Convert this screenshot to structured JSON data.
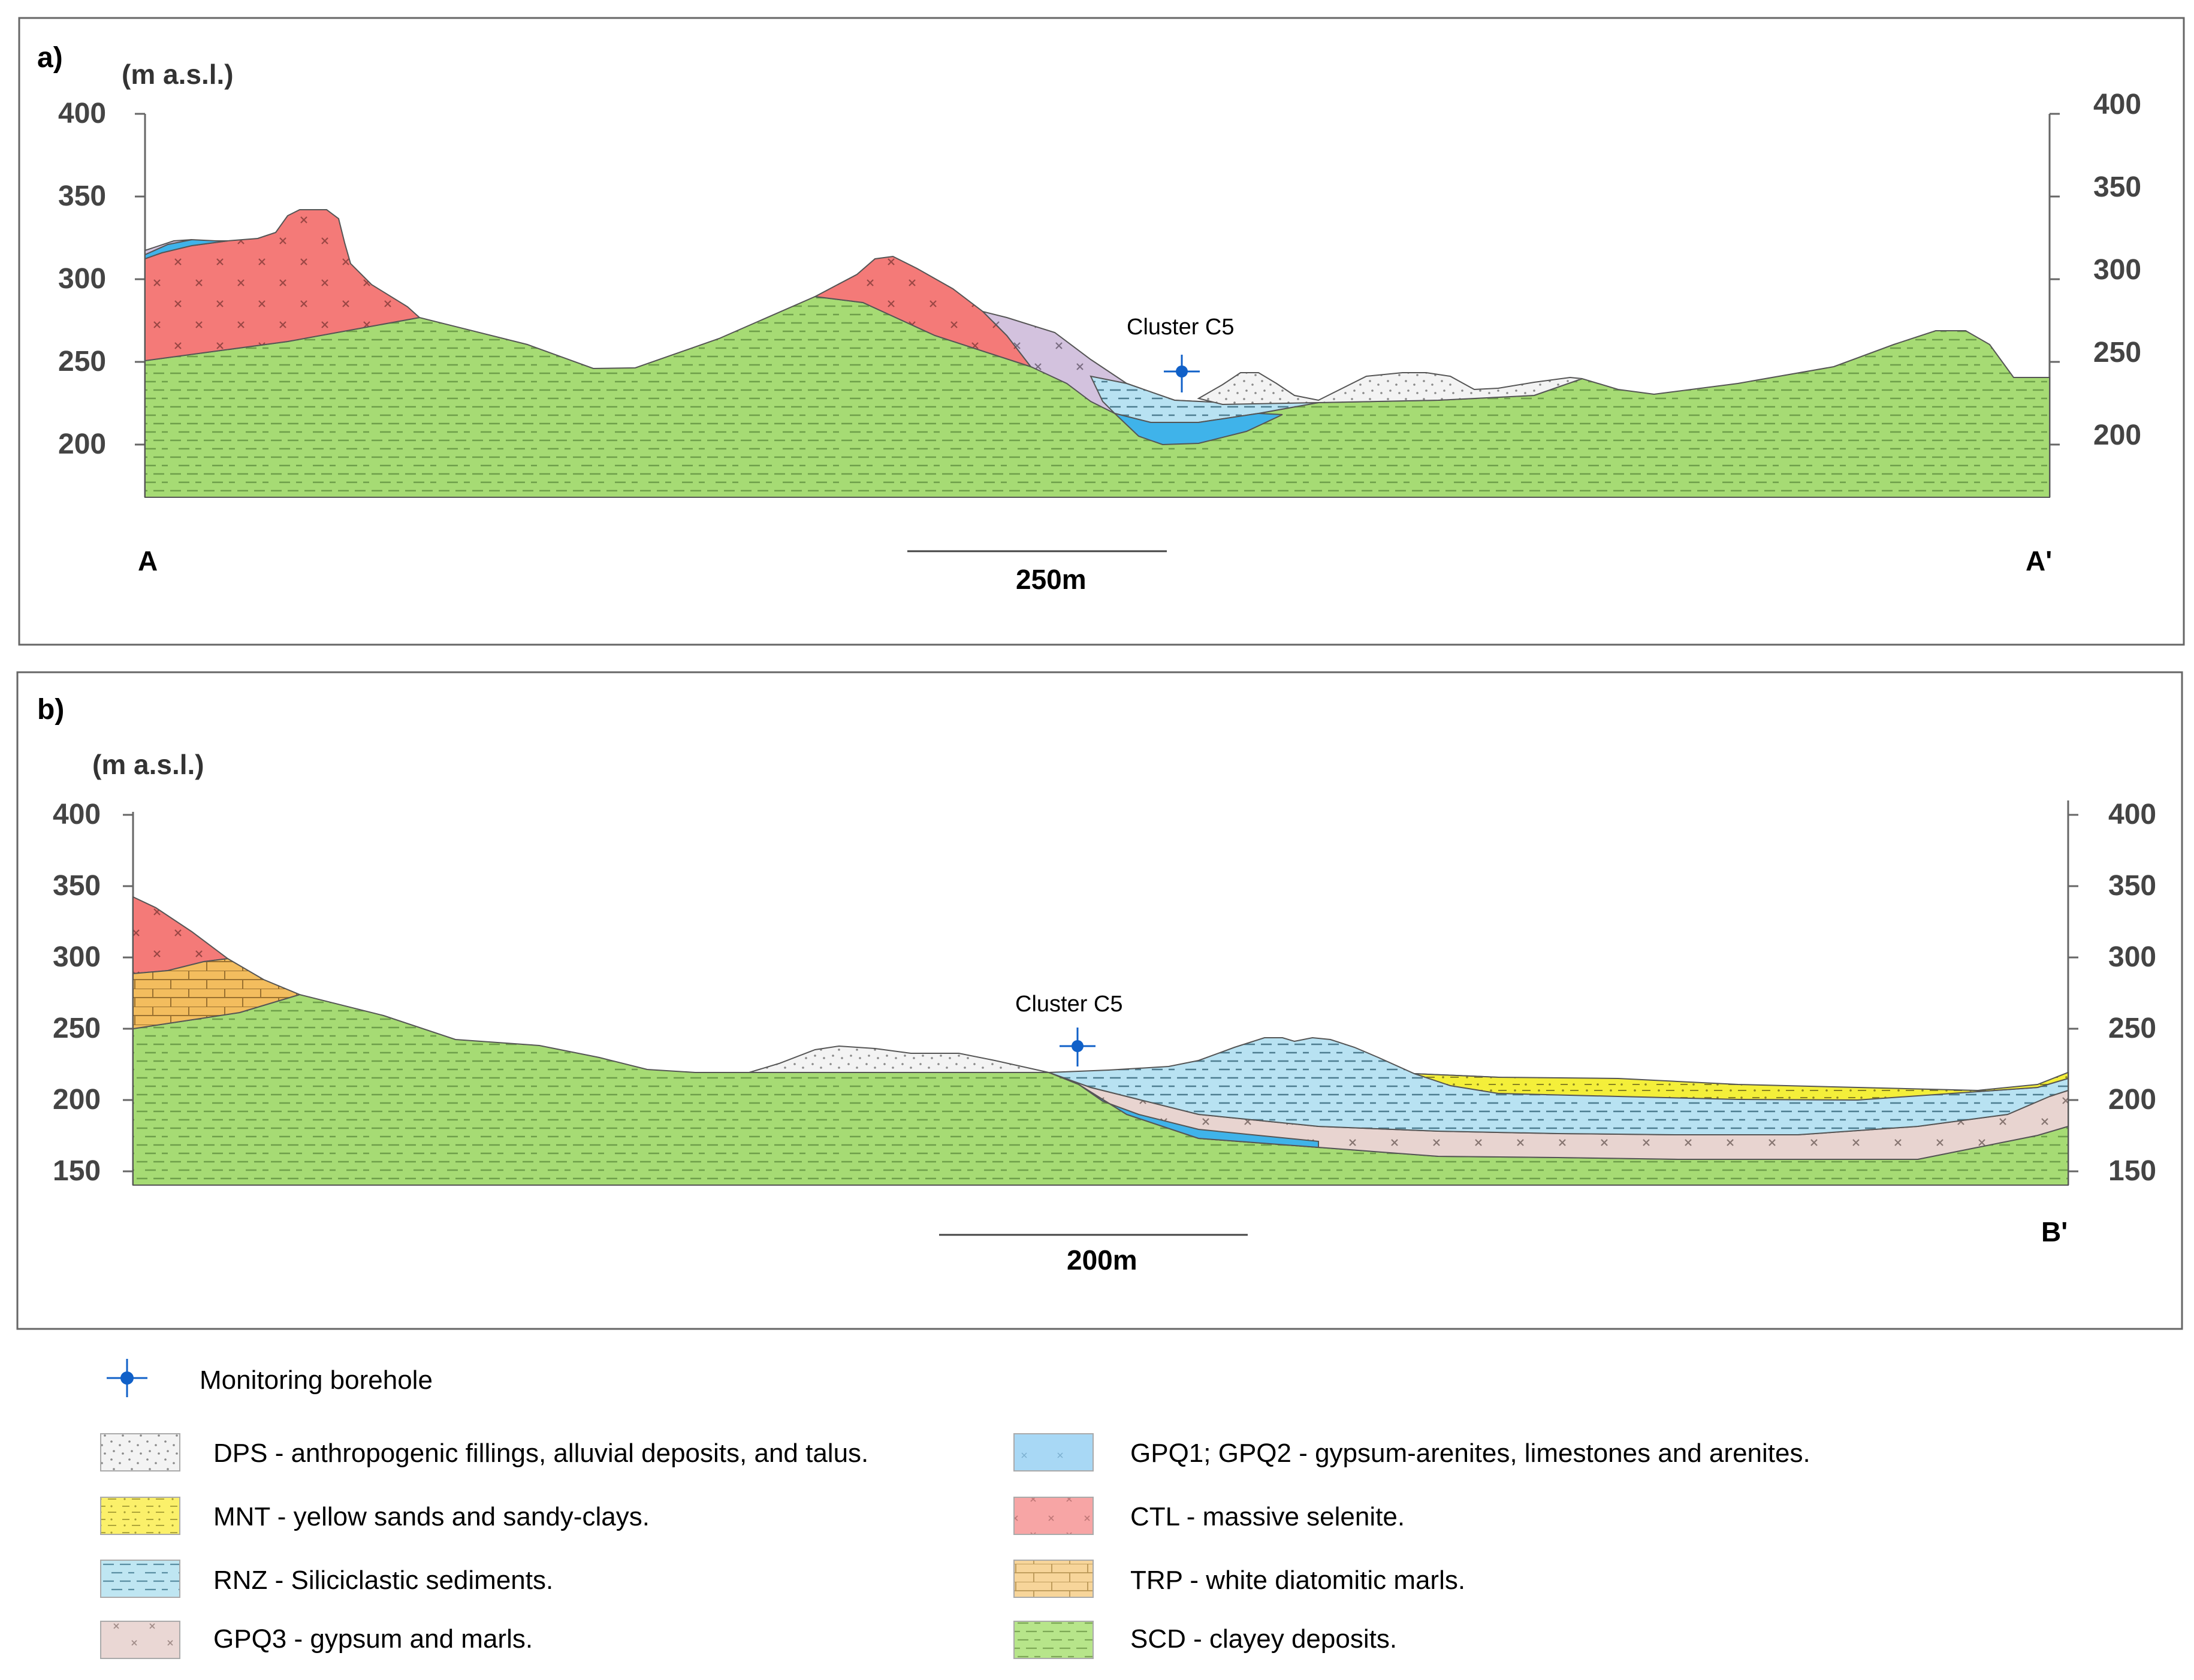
{
  "panel_a": {
    "label": "a)",
    "unit": "(m a.s.l.)",
    "ticks": [
      "400",
      "350",
      "300",
      "250",
      "200"
    ],
    "start_label": "A",
    "end_label": "A'",
    "scale_label": "250m",
    "borehole_label": "Cluster C5"
  },
  "panel_b": {
    "label": "b)",
    "unit": "(m a.s.l.)",
    "ticks": [
      "400",
      "350",
      "300",
      "250",
      "200",
      "150"
    ],
    "end_label": "B'",
    "scale_label": "200m",
    "borehole_label": "Cluster C5"
  },
  "legend": {
    "borehole": "Monitoring borehole",
    "items": [
      {
        "code": "DPS",
        "label": "DPS - anthropogenic fillings, alluvial deposits, and talus.",
        "color": "#f4f4f4"
      },
      {
        "code": "MNT",
        "label": "MNT - yellow sands and sandy-clays.",
        "color": "#fbf06a"
      },
      {
        "code": "RNZ",
        "label": "RNZ - Siliciclastic sediments.",
        "color": "#bfe6f2"
      },
      {
        "code": "GPQ3",
        "label": "GPQ3 - gypsum and marls.",
        "color": "#ead7d4"
      },
      {
        "code": "GPQ1",
        "label": "GPQ1; GPQ2 - gypsum-arenites, limestones and arenites.",
        "color": "#a8d8f5"
      },
      {
        "code": "CTL",
        "label": "CTL - massive selenite.",
        "color": "#f7a5a5"
      },
      {
        "code": "TRP",
        "label": "TRP - white diatomitic marls.",
        "color": "#f7d59a"
      },
      {
        "code": "SCD",
        "label": "SCD - clayey deposits.",
        "color": "#b7e58a"
      }
    ]
  },
  "colors": {
    "scd": "#a6db74",
    "ctl": "#f47a78",
    "gpq1": "#3fb3ea",
    "gpq3_a": "#d3c2de",
    "gpq3_b": "#e8d4d0",
    "rnz": "#b8e2f2",
    "dps": "#f3f3f3",
    "mnt": "#f4ef3a",
    "trp": "#f3bd5e",
    "borehole": "#1060c8"
  }
}
